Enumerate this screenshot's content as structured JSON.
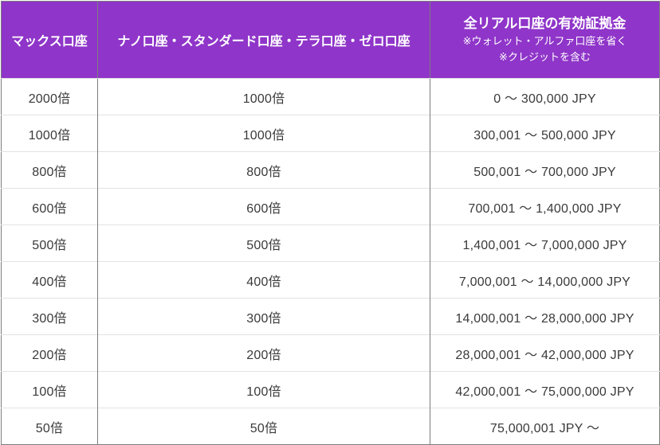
{
  "table": {
    "headers": {
      "col1": "マックス口座",
      "col2": "ナノ口座・スタンダード口座・テラ口座・ゼロ口座",
      "col3_title": "全リアル口座の有効証拠金",
      "col3_note1": "※ウォレット・アルファ口座を省く",
      "col3_note2": "※クレジットを含む"
    },
    "rows": [
      {
        "max": "2000倍",
        "others": "1000倍",
        "range": "0 ～ 300,000 JPY"
      },
      {
        "max": "1000倍",
        "others": "1000倍",
        "range": "300,001 ～ 500,000 JPY"
      },
      {
        "max": "800倍",
        "others": "800倍",
        "range": "500,001 ～ 700,000 JPY"
      },
      {
        "max": "600倍",
        "others": "600倍",
        "range": "700,001 ～ 1,400,000 JPY"
      },
      {
        "max": "500倍",
        "others": "500倍",
        "range": "1,400,001 ～ 7,000,000 JPY"
      },
      {
        "max": "400倍",
        "others": "400倍",
        "range": "7,000,001 ～ 14,000,000 JPY"
      },
      {
        "max": "300倍",
        "others": "300倍",
        "range": "14,000,001 ～ 28,000,000 JPY"
      },
      {
        "max": "200倍",
        "others": "200倍",
        "range": "28,000,001 ～ 42,000,000 JPY"
      },
      {
        "max": "100倍",
        "others": "100倍",
        "range": "42,000,001 ～ 75,000,000 JPY"
      },
      {
        "max": "50倍",
        "others": "50倍",
        "range": "75,000,001 JPY ～"
      }
    ],
    "colors": {
      "header_bg": "#8F35C9",
      "header_text": "#FFFFFF",
      "body_text": "#3A3A3A",
      "vertical_border": "#7D7D7D",
      "horizontal_border": "#E2E2E2"
    }
  }
}
